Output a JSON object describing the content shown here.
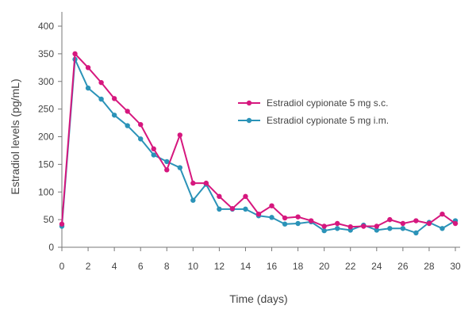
{
  "chart_data": {
    "type": "line",
    "title": "",
    "xlabel": "Time (days)",
    "ylabel": "Estradiol levels (pg/mL)",
    "xlim": [
      0,
      30
    ],
    "ylim": [
      0,
      400
    ],
    "xticks": [
      0,
      2,
      4,
      6,
      8,
      10,
      12,
      14,
      16,
      18,
      20,
      22,
      24,
      26,
      28,
      30
    ],
    "yticks": [
      0,
      50,
      100,
      150,
      200,
      250,
      300,
      350,
      400
    ],
    "grid": false,
    "legend_position": "center-right",
    "x": [
      0,
      1,
      2,
      3,
      4,
      5,
      6,
      7,
      8,
      9,
      10,
      11,
      12,
      13,
      14,
      15,
      16,
      17,
      18,
      19,
      20,
      21,
      22,
      23,
      24,
      25,
      26,
      27,
      28,
      29,
      30
    ],
    "series": [
      {
        "name": "Estradiol cypionate 5 mg s.c.",
        "color": "#d6177e",
        "values": [
          42,
          350,
          325,
          298,
          269,
          246,
          222,
          178,
          140,
          203,
          116,
          116,
          92,
          70,
          92,
          60,
          75,
          53,
          55,
          48,
          38,
          43,
          37,
          38,
          38,
          50,
          43,
          48,
          43,
          60,
          43
        ]
      },
      {
        "name": "Estradiol cypionate 5 mg i.m.",
        "color": "#2b93b8",
        "values": [
          38,
          340,
          288,
          268,
          239,
          220,
          196,
          167,
          155,
          144,
          85,
          114,
          69,
          69,
          69,
          57,
          54,
          42,
          43,
          46,
          30,
          34,
          31,
          40,
          31,
          34,
          34,
          26,
          45,
          34,
          48
        ]
      }
    ]
  }
}
